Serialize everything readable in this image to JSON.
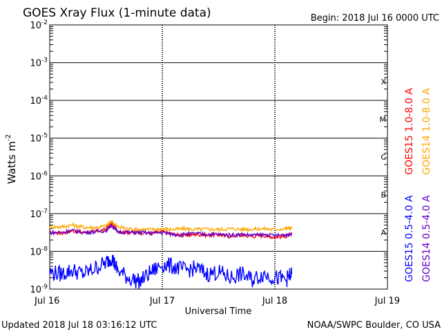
{
  "chart_data": {
    "type": "line",
    "title": "GOES Xray Flux (1-minute data)",
    "begin_label": "Begin:  2018 Jul 16 0000 UTC",
    "xlabel": "Universal Time",
    "ylabel_main": "Watts m",
    "ylabel_exp": "-2",
    "updated": "Updated 2018 Jul 18 03:16:12 UTC",
    "credit": "NOAA/SWPC Boulder, CO USA",
    "x_range_days": [
      0,
      3
    ],
    "y_log_range": [
      -9,
      -2
    ],
    "x_ticks": [
      {
        "day": 0,
        "label": "Jul 16"
      },
      {
        "day": 1,
        "label": "Jul 17"
      },
      {
        "day": 2,
        "label": "Jul 18"
      },
      {
        "day": 3,
        "label": "Jul 19"
      }
    ],
    "y_ticks": [
      {
        "exp": -2,
        "base": "10",
        "sup": "-2"
      },
      {
        "exp": -3,
        "base": "10",
        "sup": "-3"
      },
      {
        "exp": -4,
        "base": "10",
        "sup": "-4"
      },
      {
        "exp": -5,
        "base": "10",
        "sup": "-5"
      },
      {
        "exp": -6,
        "base": "10",
        "sup": "-6"
      },
      {
        "exp": -7,
        "base": "10",
        "sup": "-7"
      },
      {
        "exp": -8,
        "base": "10",
        "sup": "-8"
      },
      {
        "exp": -9,
        "base": "10",
        "sup": "-9"
      }
    ],
    "flare_classes": [
      {
        "label": "X",
        "exp": -3.5
      },
      {
        "label": "M",
        "exp": -4.5
      },
      {
        "label": "C",
        "exp": -5.5
      },
      {
        "label": "B",
        "exp": -6.5
      },
      {
        "label": "A",
        "exp": -7.5
      }
    ],
    "series": [
      {
        "name": "GOES15 1.0-8.0 A",
        "color": "#ff0000",
        "days": [
          0.0,
          0.1,
          0.2,
          0.3,
          0.4,
          0.5,
          0.55,
          0.6,
          0.7,
          0.8,
          0.9,
          1.0,
          1.1,
          1.2,
          1.3,
          1.4,
          1.5,
          1.6,
          1.7,
          1.8,
          1.9,
          2.0,
          2.1,
          2.15
        ],
        "log_values": [
          -7.5,
          -7.52,
          -7.45,
          -7.5,
          -7.48,
          -7.42,
          -7.25,
          -7.45,
          -7.5,
          -7.5,
          -7.52,
          -7.48,
          -7.55,
          -7.58,
          -7.55,
          -7.57,
          -7.56,
          -7.6,
          -7.57,
          -7.6,
          -7.58,
          -7.62,
          -7.6,
          -7.55
        ]
      },
      {
        "name": "GOES14 1.0-8.0 A",
        "color": "#ffa500",
        "days": [
          0.0,
          0.1,
          0.2,
          0.3,
          0.4,
          0.5,
          0.55,
          0.6,
          0.7,
          0.8,
          0.9,
          1.0,
          1.1,
          1.2,
          1.3,
          1.4,
          1.5,
          1.6,
          1.7,
          1.8,
          1.9,
          2.0,
          2.1,
          2.15
        ],
        "log_values": [
          -7.35,
          -7.35,
          -7.3,
          -7.36,
          -7.37,
          -7.33,
          -7.2,
          -7.35,
          -7.4,
          -7.42,
          -7.42,
          -7.4,
          -7.42,
          -7.4,
          -7.42,
          -7.41,
          -7.42,
          -7.4,
          -7.41,
          -7.41,
          -7.4,
          -7.42,
          -7.39,
          -7.38
        ]
      },
      {
        "name": "GOES15 0.5-4.0 A",
        "color": "#0000ff",
        "days": [
          0.0,
          0.1,
          0.2,
          0.3,
          0.4,
          0.5,
          0.55,
          0.6,
          0.7,
          0.8,
          0.9,
          1.0,
          1.1,
          1.2,
          1.3,
          1.4,
          1.5,
          1.6,
          1.7,
          1.8,
          1.9,
          2.0,
          2.1,
          2.15
        ],
        "log_values": [
          -8.55,
          -8.6,
          -8.5,
          -8.6,
          -8.45,
          -8.3,
          -8.15,
          -8.5,
          -8.7,
          -8.8,
          -8.55,
          -8.35,
          -8.4,
          -8.5,
          -8.45,
          -8.6,
          -8.55,
          -8.7,
          -8.6,
          -8.75,
          -8.6,
          -8.7,
          -8.75,
          -8.6
        ]
      },
      {
        "name": "GOES14 0.5-4.0 A",
        "color": "#6600cc",
        "days": [
          0.0,
          0.1,
          0.2,
          0.3,
          0.4,
          0.5,
          0.55,
          0.6,
          0.7,
          0.8,
          0.9,
          1.0,
          1.1,
          1.2,
          1.3,
          1.4,
          1.5,
          1.6,
          1.7,
          1.8,
          1.9,
          2.0,
          2.1,
          2.15
        ],
        "log_values": [
          -7.5,
          -7.5,
          -7.45,
          -7.5,
          -7.48,
          -7.45,
          -7.3,
          -7.48,
          -7.5,
          -7.5,
          -7.52,
          -7.5,
          -7.55,
          -7.55,
          -7.53,
          -7.55,
          -7.55,
          -7.57,
          -7.55,
          -7.57,
          -7.56,
          -7.58,
          -7.56,
          -7.55
        ]
      }
    ],
    "right_legend": [
      {
        "text": "GOES15 1.0-8.0 A",
        "color": "#ff0000"
      },
      {
        "text": "GOES14 1.0-8.0 A",
        "color": "#ffa500"
      },
      {
        "text": "GOES15 0.5-4.0 A",
        "color": "#0000ff"
      },
      {
        "text": "GOES14 0.5-4.0 A",
        "color": "#6600cc"
      }
    ]
  }
}
